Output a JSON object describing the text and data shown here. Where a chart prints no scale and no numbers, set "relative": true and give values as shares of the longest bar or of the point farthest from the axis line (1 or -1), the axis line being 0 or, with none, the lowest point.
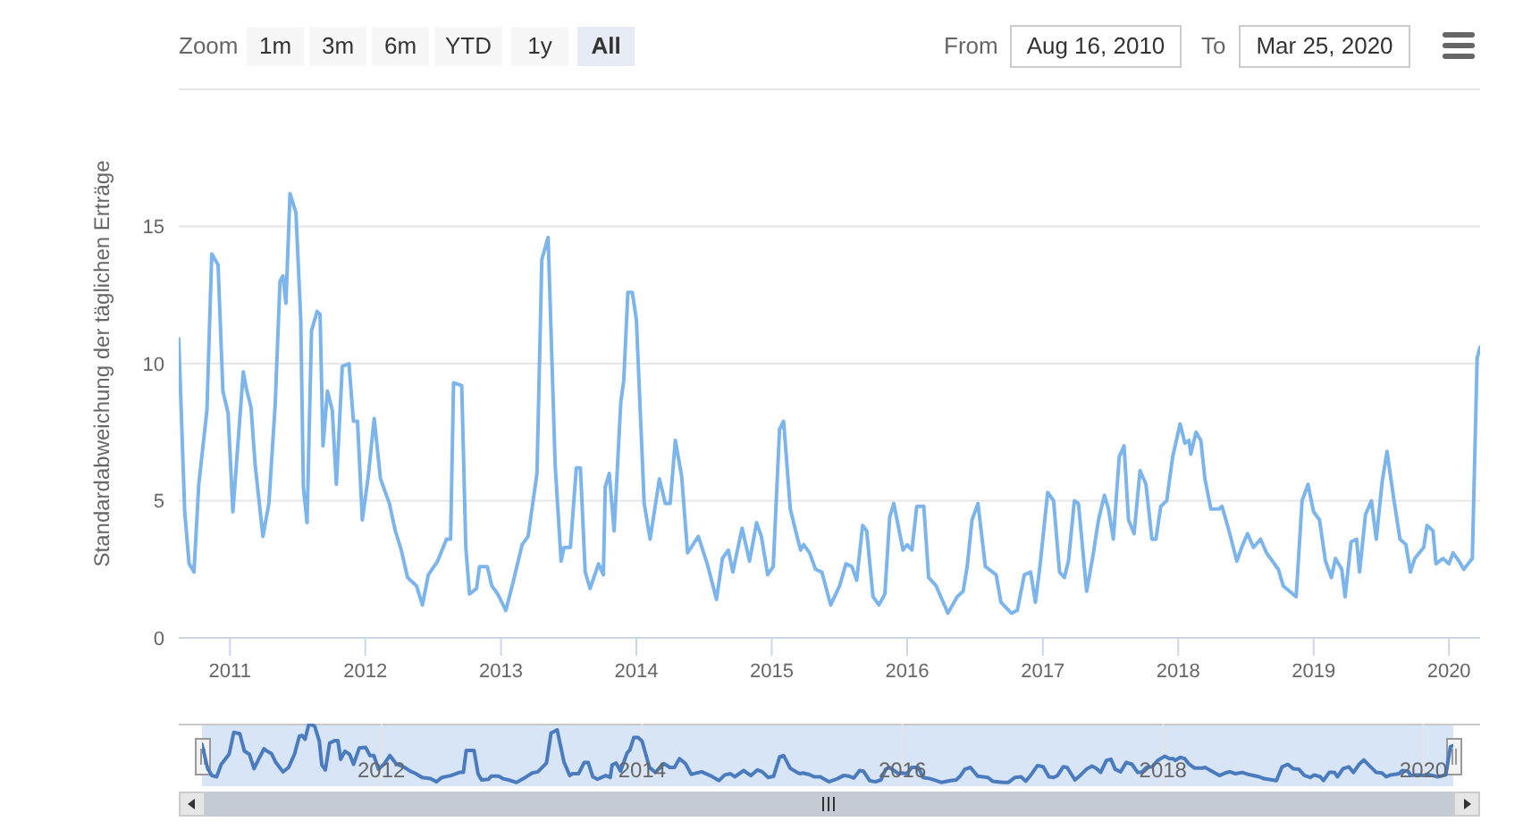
{
  "chart_data": [
    {
      "type": "line",
      "ylabel": "Standardabweichung der täglichen Erträge",
      "annotations": [
        "Zoom",
        "1m",
        "3m",
        "6m",
        "YTD",
        "1y",
        "All",
        "From",
        "Aug 16, 2010",
        "To",
        "Mar 25, 2020"
      ],
      "x": [
        "2010-08-16",
        "2010-09-01",
        "2010-09-13",
        "2010-09-26",
        "2010-10-09",
        "2010-10-31",
        "2010-11-13",
        "2010-11-30",
        "2010-12-13",
        "2010-12-27",
        "2011-01-09",
        "2011-01-20",
        "2011-02-06",
        "2011-02-14",
        "2011-02-27",
        "2011-03-10",
        "2011-03-31",
        "2011-04-16",
        "2011-05-03",
        "2011-05-16",
        "2011-05-24",
        "2011-06-01",
        "2011-06-12",
        "2011-06-28",
        "2011-07-11",
        "2011-07-18",
        "2011-07-28",
        "2011-08-09",
        "2011-08-24",
        "2011-09-01",
        "2011-09-09",
        "2011-09-21",
        "2011-10-04",
        "2011-10-15",
        "2011-10-31",
        "2011-11-18",
        "2011-11-30",
        "2011-12-11",
        "2011-12-24",
        "2012-01-09",
        "2012-01-25",
        "2012-02-11",
        "2012-03-06",
        "2012-03-22",
        "2012-04-07",
        "2012-04-24",
        "2012-05-18",
        "2012-06-03",
        "2012-06-19",
        "2012-07-14",
        "2012-08-07",
        "2012-08-18",
        "2012-08-26",
        "2012-09-17",
        "2012-09-28",
        "2012-10-08",
        "2012-10-27",
        "2012-11-04",
        "2012-11-25",
        "2012-12-07",
        "2012-12-23",
        "2013-01-14",
        "2013-02-02",
        "2013-02-27",
        "2013-03-15",
        "2013-04-08",
        "2013-04-21",
        "2013-05-08",
        "2013-05-27",
        "2013-06-12",
        "2013-06-20",
        "2013-07-07",
        "2013-07-23",
        "2013-08-03",
        "2013-08-16",
        "2013-08-29",
        "2013-09-21",
        "2013-10-04",
        "2013-10-09",
        "2013-10-20",
        "2013-11-02",
        "2013-11-20",
        "2013-11-28",
        "2013-12-09",
        "2013-12-21",
        "2014-01-01",
        "2014-01-22",
        "2014-02-07",
        "2014-03-04",
        "2014-03-20",
        "2014-04-02",
        "2014-04-16",
        "2014-05-03",
        "2014-05-19",
        "2014-06-17",
        "2014-07-11",
        "2014-08-05",
        "2014-08-21",
        "2014-09-06",
        "2014-09-18",
        "2014-10-13",
        "2014-11-02",
        "2014-11-21",
        "2014-12-04",
        "2014-12-21",
        "2015-01-05",
        "2015-01-22",
        "2015-02-02",
        "2015-02-20",
        "2015-03-12",
        "2015-03-20",
        "2015-03-28",
        "2015-04-13",
        "2015-04-29",
        "2015-05-16",
        "2015-06-09",
        "2015-07-03",
        "2015-07-20",
        "2015-08-05",
        "2015-08-18",
        "2015-09-03",
        "2015-09-14",
        "2015-10-01",
        "2015-10-17",
        "2015-11-02",
        "2015-11-15",
        "2015-11-26",
        "2015-12-21",
        "2016-01-01",
        "2016-01-14",
        "2016-01-27",
        "2016-02-15",
        "2016-02-28",
        "2016-03-19",
        "2016-04-04",
        "2016-04-20",
        "2016-05-15",
        "2016-05-31",
        "2016-06-11",
        "2016-06-24",
        "2016-07-10",
        "2016-07-30",
        "2016-08-28",
        "2016-09-10",
        "2016-10-08",
        "2016-10-24",
        "2016-11-12",
        "2016-11-29",
        "2016-12-12",
        "2016-12-24",
        "2017-01-14",
        "2017-01-30",
        "2017-02-15",
        "2017-02-28",
        "2017-03-11",
        "2017-03-27",
        "2017-04-07",
        "2017-04-29",
        "2017-05-15",
        "2017-05-31",
        "2017-06-16",
        "2017-06-27",
        "2017-07-10",
        "2017-07-26",
        "2017-08-08",
        "2017-08-20",
        "2017-09-04",
        "2017-09-20",
        "2017-10-06",
        "2017-10-22",
        "2017-11-02",
        "2017-11-15",
        "2017-12-01",
        "2017-12-17",
        "2018-01-06",
        "2018-01-19",
        "2018-01-30",
        "2018-02-04",
        "2018-02-18",
        "2018-03-03",
        "2018-03-14",
        "2018-03-30",
        "2018-04-21",
        "2018-04-29",
        "2018-05-18",
        "2018-06-08",
        "2018-06-24",
        "2018-07-07",
        "2018-07-23",
        "2018-08-11",
        "2018-08-27",
        "2018-09-28",
        "2018-10-11",
        "2018-11-15",
        "2018-12-01",
        "2018-12-17",
        "2019-01-01",
        "2019-01-17",
        "2019-02-02",
        "2019-02-18",
        "2019-03-01",
        "2019-03-18",
        "2019-03-27",
        "2019-04-12",
        "2019-04-27",
        "2019-05-05",
        "2019-05-21",
        "2019-06-06",
        "2019-06-19",
        "2019-07-05",
        "2019-07-18",
        "2019-08-06",
        "2019-08-22",
        "2019-09-07",
        "2019-09-19",
        "2019-10-01",
        "2019-10-25",
        "2019-11-03",
        "2019-11-19",
        "2019-11-27",
        "2019-12-16",
        "2020-01-01",
        "2020-01-12",
        "2020-01-28",
        "2020-02-10",
        "2020-03-04",
        "2020-03-17",
        "2020-03-25"
      ],
      "series": [
        {
          "color": "#7cb5ec",
          "values": [
            10.9,
            4.6,
            2.7,
            2.4,
            5.6,
            8.3,
            14.0,
            13.6,
            9.0,
            8.2,
            4.6,
            6.6,
            9.7,
            9.1,
            8.4,
            6.3,
            3.7,
            4.9,
            8.5,
            13.0,
            13.2,
            12.2,
            16.2,
            15.5,
            11.6,
            5.5,
            4.2,
            11.2,
            11.9,
            11.8,
            7.0,
            9.0,
            8.3,
            5.6,
            9.9,
            10.0,
            7.9,
            7.9,
            4.3,
            5.9,
            8.0,
            5.8,
            4.9,
            3.9,
            3.2,
            2.2,
            1.9,
            1.2,
            2.3,
            2.8,
            3.6,
            3.6,
            9.3,
            9.2,
            3.3,
            1.6,
            1.8,
            2.6,
            2.6,
            1.9,
            1.6,
            1.0,
            2.0,
            3.4,
            3.7,
            6.0,
            13.8,
            14.6,
            6.3,
            2.8,
            3.3,
            3.3,
            6.2,
            6.2,
            2.4,
            1.8,
            2.7,
            2.3,
            5.5,
            6.0,
            3.9,
            8.6,
            9.4,
            12.6,
            12.6,
            11.6,
            4.9,
            3.6,
            5.8,
            4.9,
            4.9,
            7.2,
            5.9,
            3.1,
            3.7,
            2.7,
            1.4,
            2.9,
            3.2,
            2.4,
            4.0,
            2.8,
            4.2,
            3.7,
            2.3,
            2.6,
            7.6,
            7.9,
            4.7,
            3.6,
            3.2,
            3.4,
            3.1,
            2.5,
            2.4,
            1.2,
            1.9,
            2.7,
            2.6,
            2.1,
            4.1,
            3.9,
            1.5,
            1.2,
            1.6,
            4.4,
            4.9,
            3.2,
            3.4,
            3.2,
            4.8,
            4.8,
            2.2,
            1.9,
            1.4,
            0.9,
            1.5,
            1.7,
            2.6,
            4.3,
            4.9,
            2.6,
            2.3,
            1.3,
            0.9,
            1.0,
            2.3,
            2.4,
            1.3,
            2.6,
            5.3,
            5.0,
            2.4,
            2.2,
            2.8,
            5.0,
            4.9,
            1.7,
            2.9,
            4.3,
            5.2,
            4.7,
            3.6,
            6.6,
            7.0,
            4.3,
            3.8,
            6.1,
            5.6,
            3.6,
            3.6,
            4.8,
            5.0,
            6.6,
            7.8,
            7.1,
            7.2,
            6.7,
            7.5,
            7.2,
            5.8,
            4.7,
            4.7,
            4.8,
            3.9,
            2.8,
            3.4,
            3.8,
            3.3,
            3.6,
            3.1,
            2.5,
            1.9,
            1.5,
            5.0,
            5.6,
            4.6,
            4.3,
            2.8,
            2.2,
            2.9,
            2.5,
            1.5,
            3.5,
            3.6,
            2.4,
            4.5,
            5.0,
            3.6,
            5.7,
            6.8,
            5.0,
            3.6,
            3.4,
            2.4,
            2.9,
            3.3,
            4.1,
            3.9,
            2.7,
            2.9,
            2.7,
            3.1,
            2.8,
            2.5,
            2.9,
            10.2,
            10.6
          ]
        }
      ],
      "xlim": [
        "2010-08-16",
        "2020-03-25"
      ],
      "xticks": [
        "2011",
        "2012",
        "2013",
        "2014",
        "2015",
        "2016",
        "2017",
        "2018",
        "2019",
        "2020"
      ],
      "ylim": [
        0,
        20
      ],
      "yticks": [
        0,
        5,
        10,
        15,
        {
          "value": 20,
          "label": null
        }
      ],
      "grid": "y"
    },
    {
      "type": "line",
      "tick_labels": "x",
      "x": [
        "2010-08-16",
        "2010-09-01",
        "2010-09-13",
        "2010-09-26",
        "2010-10-09",
        "2010-10-31",
        "2010-11-13",
        "2010-11-30",
        "2010-12-13",
        "2010-12-27",
        "2011-01-09",
        "2011-01-20",
        "2011-02-06",
        "2011-02-14",
        "2011-02-27",
        "2011-03-10",
        "2011-03-31",
        "2011-04-16",
        "2011-05-03",
        "2011-05-16",
        "2011-05-24",
        "2011-06-01",
        "2011-06-12",
        "2011-06-28",
        "2011-07-11",
        "2011-07-18",
        "2011-07-28",
        "2011-08-09",
        "2011-08-24",
        "2011-09-01",
        "2011-09-09",
        "2011-09-21",
        "2011-10-04",
        "2011-10-15",
        "2011-10-31",
        "2011-11-18",
        "2011-11-30",
        "2011-12-11",
        "2011-12-24",
        "2012-01-09",
        "2012-01-25",
        "2012-02-11",
        "2012-03-06",
        "2012-03-22",
        "2012-04-07",
        "2012-04-24",
        "2012-05-18",
        "2012-06-03",
        "2012-06-19",
        "2012-07-14",
        "2012-08-07",
        "2012-08-18",
        "2012-08-26",
        "2012-09-17",
        "2012-09-28",
        "2012-10-08",
        "2012-10-27",
        "2012-11-04",
        "2012-11-25",
        "2012-12-07",
        "2012-12-23",
        "2013-01-14",
        "2013-02-02",
        "2013-02-27",
        "2013-03-15",
        "2013-04-08",
        "2013-04-21",
        "2013-05-08",
        "2013-05-27",
        "2013-06-12",
        "2013-06-20",
        "2013-07-07",
        "2013-07-23",
        "2013-08-03",
        "2013-08-16",
        "2013-08-29",
        "2013-09-21",
        "2013-10-04",
        "2013-10-09",
        "2013-10-20",
        "2013-11-02",
        "2013-11-20",
        "2013-11-28",
        "2013-12-09",
        "2013-12-21",
        "2014-01-01",
        "2014-01-22",
        "2014-02-07",
        "2014-03-04",
        "2014-03-20",
        "2014-04-02",
        "2014-04-16",
        "2014-05-03",
        "2014-05-19",
        "2014-06-17",
        "2014-07-11",
        "2014-08-05",
        "2014-08-21",
        "2014-09-06",
        "2014-09-18",
        "2014-10-13",
        "2014-11-02",
        "2014-11-21",
        "2014-12-04",
        "2014-12-21",
        "2015-01-05",
        "2015-01-22",
        "2015-02-02",
        "2015-02-20",
        "2015-03-12",
        "2015-03-20",
        "2015-03-28",
        "2015-04-13",
        "2015-04-29",
        "2015-05-16",
        "2015-06-09",
        "2015-07-03",
        "2015-07-20",
        "2015-08-05",
        "2015-08-18",
        "2015-09-03",
        "2015-09-14",
        "2015-10-01",
        "2015-10-17",
        "2015-11-02",
        "2015-11-15",
        "2015-11-26",
        "2015-12-21",
        "2016-01-01",
        "2016-01-14",
        "2016-01-27",
        "2016-02-15",
        "2016-02-28",
        "2016-03-19",
        "2016-04-04",
        "2016-04-20",
        "2016-05-15",
        "2016-05-31",
        "2016-06-11",
        "2016-06-24",
        "2016-07-10",
        "2016-07-30",
        "2016-08-28",
        "2016-09-10",
        "2016-10-08",
        "2016-10-24",
        "2016-11-12",
        "2016-11-29",
        "2016-12-12",
        "2016-12-24",
        "2017-01-14",
        "2017-01-30",
        "2017-02-15",
        "2017-02-28",
        "2017-03-11",
        "2017-03-27",
        "2017-04-07",
        "2017-04-29",
        "2017-05-15",
        "2017-05-31",
        "2017-06-16",
        "2017-06-27",
        "2017-07-10",
        "2017-07-26",
        "2017-08-08",
        "2017-08-20",
        "2017-09-04",
        "2017-09-20",
        "2017-10-06",
        "2017-10-22",
        "2017-11-02",
        "2017-11-15",
        "2017-12-01",
        "2017-12-17",
        "2018-01-06",
        "2018-01-19",
        "2018-01-30",
        "2018-02-04",
        "2018-02-18",
        "2018-03-03",
        "2018-03-14",
        "2018-03-30",
        "2018-04-21",
        "2018-04-29",
        "2018-05-18",
        "2018-06-08",
        "2018-06-24",
        "2018-07-07",
        "2018-07-23",
        "2018-08-11",
        "2018-08-27",
        "2018-09-28",
        "2018-10-11",
        "2018-11-15",
        "2018-12-01",
        "2018-12-17",
        "2019-01-01",
        "2019-01-17",
        "2019-02-02",
        "2019-02-18",
        "2019-03-01",
        "2019-03-18",
        "2019-03-27",
        "2019-04-12",
        "2019-04-27",
        "2019-05-05",
        "2019-05-21",
        "2019-06-06",
        "2019-06-19",
        "2019-07-05",
        "2019-07-18",
        "2019-08-06",
        "2019-08-22",
        "2019-09-07",
        "2019-09-19",
        "2019-10-01",
        "2019-10-25",
        "2019-11-03",
        "2019-11-19",
        "2019-11-27",
        "2019-12-16",
        "2020-01-01",
        "2020-01-12",
        "2020-01-28",
        "2020-02-10",
        "2020-03-04",
        "2020-03-17",
        "2020-03-25"
      ],
      "series": [
        {
          "color": "#4a7bbf",
          "values": [
            0.67,
            0.28,
            0.17,
            0.15,
            0.35,
            0.51,
            0.86,
            0.84,
            0.56,
            0.51,
            0.28,
            0.41,
            0.6,
            0.56,
            0.52,
            0.39,
            0.23,
            0.3,
            0.52,
            0.8,
            0.81,
            0.75,
            1,
            0.96,
            0.72,
            0.34,
            0.26,
            0.69,
            0.73,
            0.73,
            0.43,
            0.56,
            0.51,
            0.35,
            0.61,
            0.62,
            0.49,
            0.49,
            0.27,
            0.36,
            0.49,
            0.36,
            0.3,
            0.24,
            0.2,
            0.14,
            0.12,
            0.07,
            0.14,
            0.17,
            0.22,
            0.22,
            0.57,
            0.57,
            0.2,
            0.1,
            0.11,
            0.16,
            0.16,
            0.12,
            0.1,
            0.06,
            0.12,
            0.21,
            0.23,
            0.37,
            0.85,
            0.9,
            0.39,
            0.17,
            0.2,
            0.2,
            0.38,
            0.38,
            0.15,
            0.11,
            0.17,
            0.14,
            0.34,
            0.37,
            0.24,
            0.53,
            0.58,
            0.78,
            0.78,
            0.72,
            0.3,
            0.22,
            0.36,
            0.3,
            0.3,
            0.44,
            0.36,
            0.19,
            0.23,
            0.17,
            0.09,
            0.18,
            0.2,
            0.15,
            0.25,
            0.17,
            0.26,
            0.23,
            0.14,
            0.16,
            0.47,
            0.49,
            0.29,
            0.22,
            0.2,
            0.21,
            0.19,
            0.15,
            0.15,
            0.07,
            0.12,
            0.17,
            0.16,
            0.13,
            0.25,
            0.24,
            0.09,
            0.07,
            0.1,
            0.27,
            0.3,
            0.2,
            0.21,
            0.2,
            0.3,
            0.3,
            0.14,
            0.12,
            0.09,
            0.06,
            0.09,
            0.1,
            0.16,
            0.27,
            0.3,
            0.16,
            0.14,
            0.08,
            0.06,
            0.06,
            0.14,
            0.15,
            0.08,
            0.16,
            0.33,
            0.31,
            0.15,
            0.14,
            0.17,
            0.31,
            0.3,
            0.1,
            0.18,
            0.27,
            0.32,
            0.29,
            0.22,
            0.41,
            0.43,
            0.27,
            0.23,
            0.38,
            0.35,
            0.22,
            0.22,
            0.3,
            0.31,
            0.41,
            0.48,
            0.44,
            0.44,
            0.41,
            0.46,
            0.44,
            0.36,
            0.29,
            0.29,
            0.3,
            0.24,
            0.17,
            0.21,
            0.23,
            0.2,
            0.22,
            0.19,
            0.15,
            0.12,
            0.09,
            0.31,
            0.35,
            0.28,
            0.27,
            0.17,
            0.14,
            0.18,
            0.15,
            0.09,
            0.22,
            0.22,
            0.15,
            0.28,
            0.31,
            0.22,
            0.35,
            0.42,
            0.31,
            0.22,
            0.21,
            0.15,
            0.18,
            0.2,
            0.25,
            0.24,
            0.17,
            0.18,
            0.17,
            0.19,
            0.17,
            0.15,
            0.18,
            0.63,
            0.65
          ]
        }
      ],
      "xlim": [
        "2010-08-16",
        "2020-03-25"
      ],
      "xticks": [
        "2012",
        "2014",
        "2016",
        "2018",
        "2020"
      ],
      "relative": true,
      "grid": "x"
    }
  ]
}
